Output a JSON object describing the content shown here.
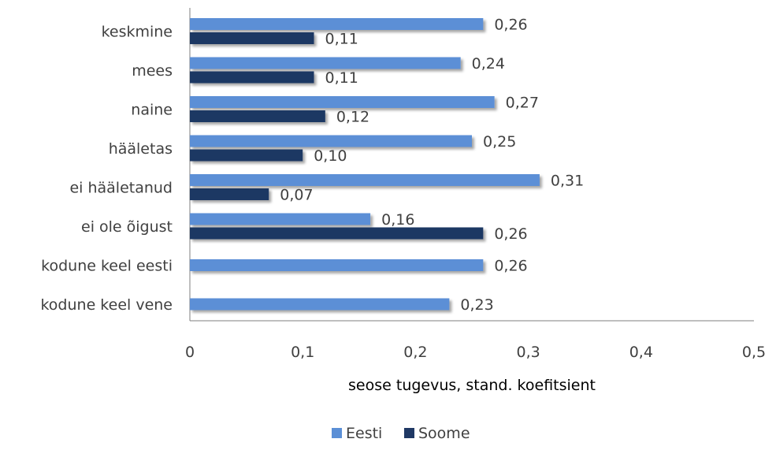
{
  "chart_data": {
    "type": "bar",
    "orientation": "horizontal",
    "categories": [
      "keskmine",
      "mees",
      "naine",
      "hääletas",
      "ei hääletanud",
      "ei ole õigust",
      "kodune keel eesti",
      "kodune keel vene"
    ],
    "series": [
      {
        "name": "Eesti",
        "values": [
          0.26,
          0.24,
          0.27,
          0.25,
          0.31,
          0.16,
          0.26,
          0.23
        ],
        "labels": [
          "0,26",
          "0,24",
          "0,27",
          "0,25",
          "0,31",
          "0,16",
          "0,26",
          "0,23"
        ],
        "color": "#5B8FD6"
      },
      {
        "name": "Soome",
        "values": [
          0.11,
          0.11,
          0.12,
          0.1,
          0.07,
          0.26,
          null,
          null
        ],
        "labels": [
          "0,11",
          "0,11",
          "0,12",
          "0,10",
          "0,07",
          "0,26",
          "",
          ""
        ],
        "color": "#1F3864"
      }
    ],
    "xlabel": "seose tugevus, stand. koefitsient",
    "xlim": [
      0,
      0.5
    ],
    "xticks": [
      0,
      0.1,
      0.2,
      0.3,
      0.4,
      0.5
    ],
    "xtick_labels": [
      "0",
      "0,1",
      "0,2",
      "0,3",
      "0,4",
      "0,5"
    ],
    "grid": false,
    "legend_position": "bottom"
  }
}
